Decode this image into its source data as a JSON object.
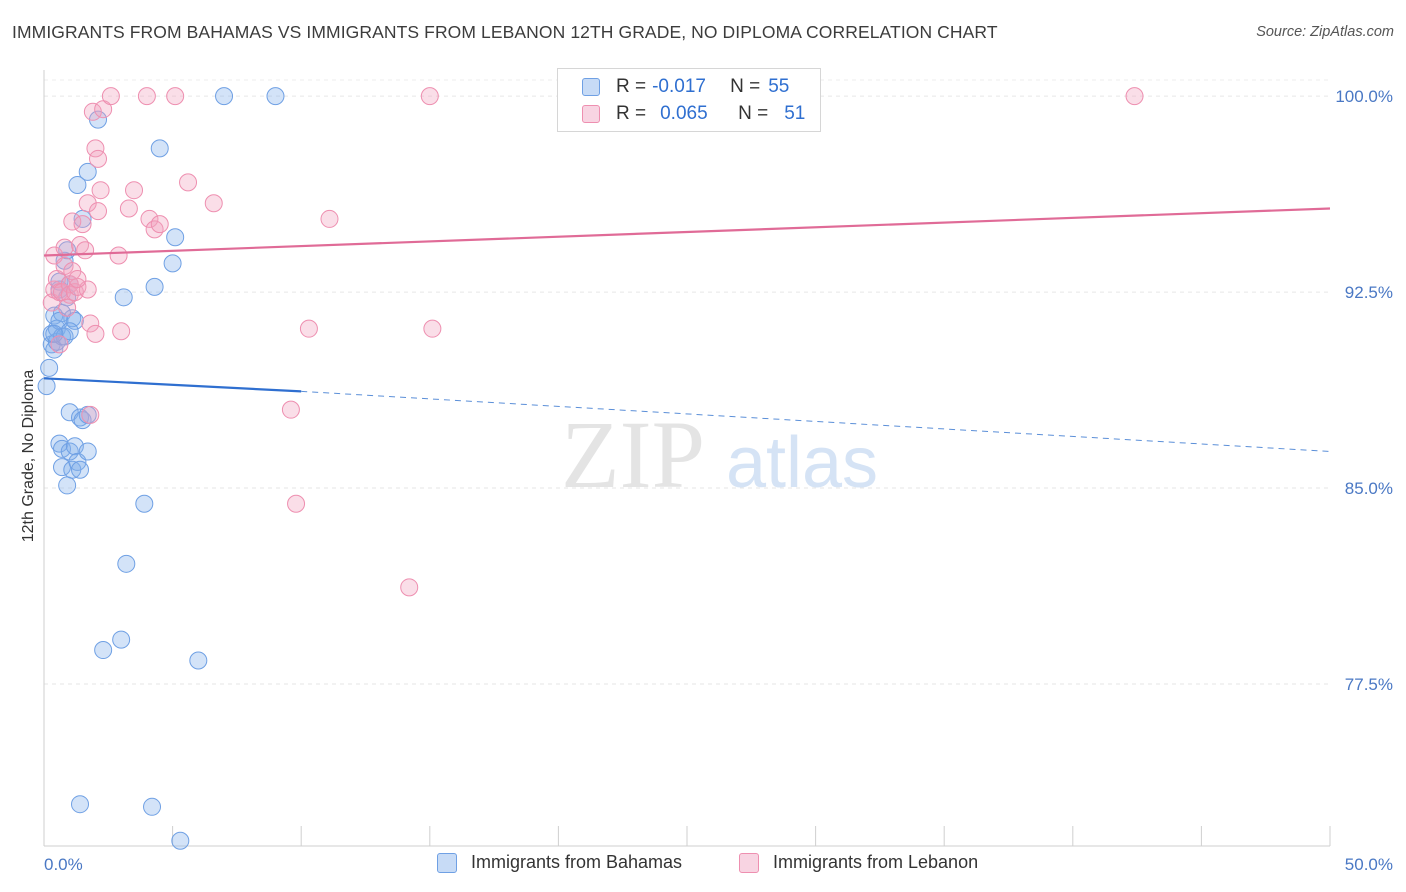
{
  "header": {
    "title": "IMMIGRANTS FROM BAHAMAS VS IMMIGRANTS FROM LEBANON 12TH GRADE, NO DIPLOMA CORRELATION CHART",
    "source": "Source: ZipAtlas.com"
  },
  "watermark": {
    "zip": "ZIP",
    "atlas": "atlas"
  },
  "legend": {
    "r_label": "R =",
    "n_label": "N =",
    "rows": [
      {
        "r": "-0.017",
        "n": "55",
        "color": "#6fa0e4"
      },
      {
        "r": "0.065",
        "n": "51",
        "color": "#ee8fb0"
      }
    ]
  },
  "chart_data": {
    "type": "scatter",
    "title": "IMMIGRANTS FROM BAHAMAS VS IMMIGRANTS FROM LEBANON 12TH GRADE, NO DIPLOMA CORRELATION CHART",
    "xlabel": "",
    "ylabel": "12th Grade, No Diploma",
    "xlim": [
      0,
      50
    ],
    "ylim": [
      71.3,
      101.0
    ],
    "x_tick_labels": [
      "0.0%",
      "50.0%"
    ],
    "y_ticks": [
      100.0,
      92.5,
      85.0,
      77.5
    ],
    "y_tick_labels": [
      "100.0%",
      "92.5%",
      "85.0%",
      "77.5%"
    ],
    "grid": true,
    "legend_position": "bottom-center",
    "series": [
      {
        "name": "Immigrants from Bahamas",
        "color": "#6fa0e4",
        "fill": "rgba(130,175,235,0.35)",
        "trend": {
          "x0": 0,
          "y0": 89.2,
          "x1": 10,
          "y1": 88.7,
          "dash_to_x": 50,
          "dash_to_y": 86.4
        },
        "points": [
          [
            0.1,
            88.9
          ],
          [
            0.2,
            89.6
          ],
          [
            0.3,
            90.5
          ],
          [
            0.3,
            90.9
          ],
          [
            0.4,
            91.6
          ],
          [
            0.4,
            90.3
          ],
          [
            0.5,
            90.6
          ],
          [
            0.5,
            91.1
          ],
          [
            0.6,
            92.6
          ],
          [
            0.6,
            92.9
          ],
          [
            0.7,
            90.8
          ],
          [
            0.7,
            91.7
          ],
          [
            0.8,
            90.8
          ],
          [
            0.8,
            93.7
          ],
          [
            0.9,
            94.1
          ],
          [
            0.9,
            92.3
          ],
          [
            1.0,
            92.8
          ],
          [
            1.1,
            91.5
          ],
          [
            1.2,
            91.4
          ],
          [
            0.6,
            86.7
          ],
          [
            0.7,
            86.5
          ],
          [
            0.7,
            85.8
          ],
          [
            0.9,
            85.1
          ],
          [
            1.0,
            87.9
          ],
          [
            1.0,
            86.4
          ],
          [
            1.1,
            85.7
          ],
          [
            1.2,
            86.6
          ],
          [
            1.3,
            86.0
          ],
          [
            1.4,
            85.7
          ],
          [
            1.4,
            87.7
          ],
          [
            1.5,
            87.6
          ],
          [
            1.7,
            87.8
          ],
          [
            1.7,
            86.4
          ],
          [
            1.3,
            96.6
          ],
          [
            1.5,
            95.3
          ],
          [
            1.7,
            97.1
          ],
          [
            2.1,
            99.1
          ],
          [
            3.1,
            92.3
          ],
          [
            4.3,
            92.7
          ],
          [
            4.5,
            98.0
          ],
          [
            5.0,
            93.6
          ],
          [
            5.1,
            94.6
          ],
          [
            7.0,
            100.0
          ],
          [
            9.0,
            100.0
          ],
          [
            3.9,
            84.4
          ],
          [
            3.2,
            82.1
          ],
          [
            3.0,
            79.2
          ],
          [
            2.3,
            78.8
          ],
          [
            6.0,
            78.4
          ],
          [
            1.4,
            72.9
          ],
          [
            4.2,
            72.8
          ],
          [
            5.3,
            71.5
          ],
          [
            0.6,
            91.4
          ],
          [
            1.0,
            91.0
          ],
          [
            0.4,
            90.9
          ]
        ]
      },
      {
        "name": "Immigrants from Lebanon",
        "color": "#ee8fb0",
        "fill": "rgba(240,160,190,0.35)",
        "trend": {
          "x0": 0,
          "y0": 93.9,
          "x1": 50,
          "y1": 95.7
        },
        "points": [
          [
            0.3,
            92.1
          ],
          [
            0.4,
            92.6
          ],
          [
            0.5,
            93.0
          ],
          [
            0.4,
            93.9
          ],
          [
            0.6,
            92.5
          ],
          [
            0.7,
            92.5
          ],
          [
            0.8,
            93.5
          ],
          [
            0.8,
            94.2
          ],
          [
            1.0,
            92.8
          ],
          [
            1.0,
            92.4
          ],
          [
            1.1,
            95.2
          ],
          [
            1.1,
            93.3
          ],
          [
            1.2,
            92.5
          ],
          [
            1.3,
            92.7
          ],
          [
            1.4,
            94.3
          ],
          [
            1.5,
            95.1
          ],
          [
            1.6,
            94.1
          ],
          [
            1.7,
            95.9
          ],
          [
            1.7,
            92.6
          ],
          [
            1.8,
            91.3
          ],
          [
            1.9,
            99.4
          ],
          [
            2.0,
            98.0
          ],
          [
            2.1,
            95.6
          ],
          [
            2.1,
            97.6
          ],
          [
            2.2,
            96.4
          ],
          [
            2.3,
            99.5
          ],
          [
            2.6,
            100.0
          ],
          [
            2.9,
            93.9
          ],
          [
            3.0,
            91.0
          ],
          [
            3.3,
            95.7
          ],
          [
            3.5,
            96.4
          ],
          [
            4.0,
            100.0
          ],
          [
            4.1,
            95.3
          ],
          [
            4.3,
            94.9
          ],
          [
            4.5,
            95.1
          ],
          [
            5.1,
            100.0
          ],
          [
            5.6,
            96.7
          ],
          [
            6.6,
            95.9
          ],
          [
            10.3,
            91.1
          ],
          [
            11.1,
            95.3
          ],
          [
            15.0,
            100.0
          ],
          [
            15.1,
            91.1
          ],
          [
            42.4,
            100.0
          ],
          [
            9.6,
            88.0
          ],
          [
            9.8,
            84.4
          ],
          [
            14.2,
            81.2
          ],
          [
            1.8,
            87.8
          ],
          [
            2.0,
            90.9
          ],
          [
            0.6,
            90.5
          ],
          [
            1.3,
            93.0
          ],
          [
            0.9,
            91.9
          ]
        ]
      }
    ]
  }
}
